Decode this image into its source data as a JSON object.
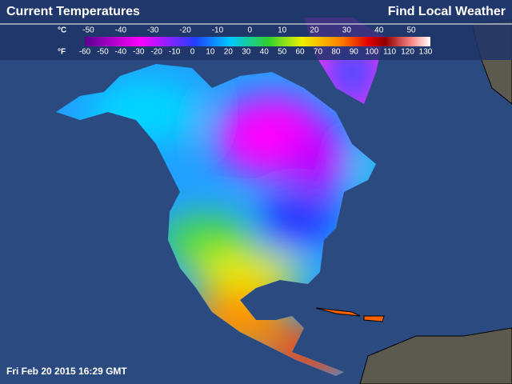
{
  "header": {
    "title": "Current Temperatures",
    "link": "Find Local Weather"
  },
  "legend": {
    "celsius_label": "°C",
    "fahrenheit_label": "°F",
    "celsius_ticks": [
      -50,
      -40,
      -30,
      -20,
      -10,
      0,
      10,
      20,
      30,
      40,
      50
    ],
    "fahrenheit_ticks": [
      -60,
      -50,
      -40,
      -30,
      -20,
      -10,
      0,
      10,
      20,
      30,
      40,
      50,
      60,
      70,
      80,
      90,
      100,
      110,
      120,
      130
    ]
  },
  "footer": {
    "timestamp": "Fri Feb 20 2015 16:29 GMT"
  }
}
